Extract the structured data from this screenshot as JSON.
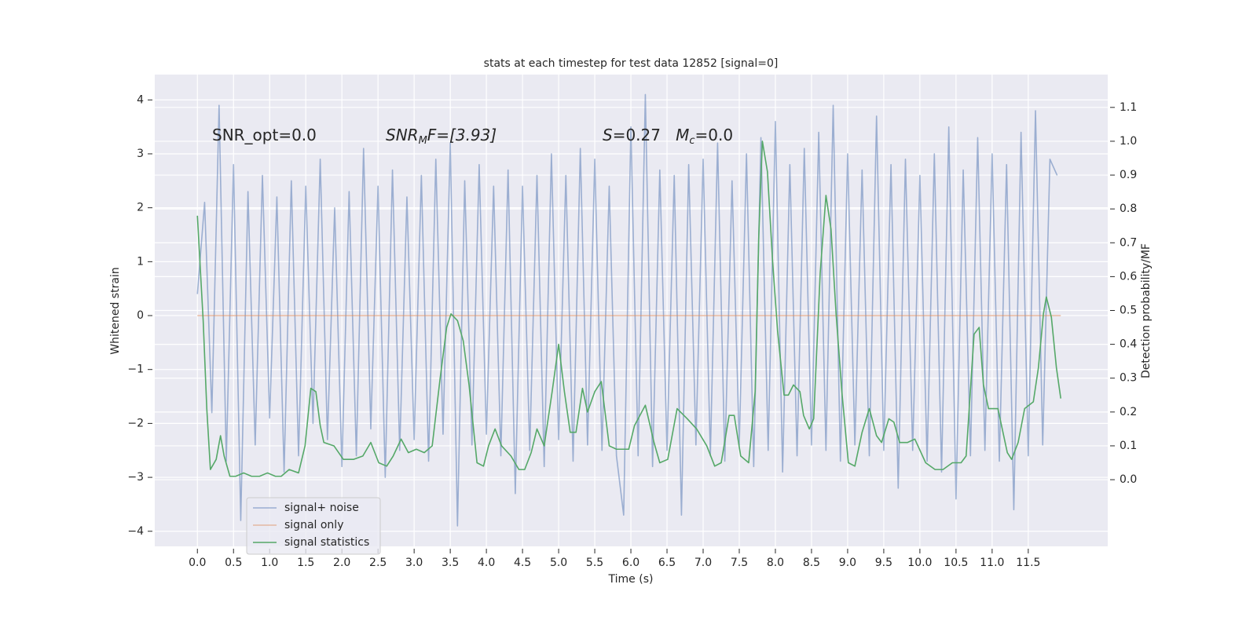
{
  "chart_data": {
    "type": "line",
    "title": "stats at each timestep for test data 12852 [signal=0]",
    "x_label": "Time (s)",
    "y_label": "Whitened strain",
    "y2_label": "Detection probability/MF",
    "annotations": [
      [
        "SNR_opt=0.0"
      ],
      [
        "SNR",
        "M",
        "F=[3.93]"
      ],
      [
        "S",
        "=0.27   ",
        "M",
        "c",
        "=0.0"
      ]
    ],
    "xlim": [
      -0.59,
      12.6
    ],
    "ylim": [
      -4.28,
      4.47
    ],
    "y2lim": [
      -0.197,
      1.197
    ],
    "xticks": [
      {
        "value": 0,
        "label": "0.0"
      },
      0.5,
      {
        "value": 1,
        "label": "1.0"
      },
      1.5,
      {
        "value": 2,
        "label": "2.0"
      },
      2.5,
      {
        "value": 3,
        "label": "3.0"
      },
      3.5,
      {
        "value": 4,
        "label": "4.0"
      },
      4.5,
      {
        "value": 5,
        "label": "5.0"
      },
      5.5,
      {
        "value": 6,
        "label": "6.0"
      },
      6.5,
      {
        "value": 7,
        "label": "7.0"
      },
      7.5,
      {
        "value": 8,
        "label": "8.0"
      },
      8.5,
      {
        "value": 9,
        "label": "9.0"
      },
      9.5,
      {
        "value": 10,
        "label": "10.0"
      },
      10.5,
      {
        "value": 11,
        "label": "11.0"
      },
      11.5
    ],
    "yticks": [
      {
        "value": -4,
        "label": "−4"
      },
      {
        "value": -3,
        "label": "−3"
      },
      {
        "value": -2,
        "label": "−2"
      },
      {
        "value": -1,
        "label": "−1"
      },
      0,
      1,
      2,
      3,
      4
    ],
    "y2ticks": [
      {
        "value": 0,
        "label": "0.0"
      },
      0.1,
      0.2,
      0.3,
      0.4,
      0.5,
      0.6,
      0.7,
      0.8,
      0.9,
      {
        "value": 1,
        "label": "1.0"
      },
      1.1
    ],
    "grid": true,
    "legend": "lower left",
    "series": [
      {
        "name": "signal+ noise",
        "color": "#4c72b0",
        "alpha": 0.5,
        "x": [
          0.0,
          0.1,
          0.2,
          0.3,
          0.4,
          0.5,
          0.6,
          0.7,
          0.8,
          0.9,
          1.0,
          1.1,
          1.2,
          1.3,
          1.4,
          1.5,
          1.6,
          1.7,
          1.8,
          1.9,
          2.0,
          2.1,
          2.2,
          2.3,
          2.4,
          2.5,
          2.6,
          2.7,
          2.8,
          2.9,
          3.0,
          3.1,
          3.2,
          3.3,
          3.4,
          3.5,
          3.6,
          3.7,
          3.8,
          3.9,
          4.0,
          4.1,
          4.2,
          4.3,
          4.4,
          4.5,
          4.6,
          4.7,
          4.8,
          4.9,
          5.0,
          5.1,
          5.2,
          5.3,
          5.4,
          5.5,
          5.6,
          5.7,
          5.8,
          5.9,
          6.0,
          6.1,
          6.2,
          6.3,
          6.4,
          6.5,
          6.6,
          6.7,
          6.8,
          6.9,
          7.0,
          7.1,
          7.2,
          7.3,
          7.4,
          7.5,
          7.6,
          7.7,
          7.8,
          7.9,
          8.0,
          8.1,
          8.2,
          8.3,
          8.4,
          8.5,
          8.6,
          8.7,
          8.8,
          8.9,
          9.0,
          9.1,
          9.2,
          9.3,
          9.4,
          9.5,
          9.6,
          9.7,
          9.8,
          9.9,
          10.0,
          10.1,
          10.2,
          10.3,
          10.4,
          10.5,
          10.6,
          10.7,
          10.8,
          10.9,
          11.0,
          11.1,
          11.2,
          11.3,
          11.4,
          11.5,
          11.6,
          11.7,
          11.8,
          11.9
        ],
        "values": [
          0.4,
          2.1,
          -1.8,
          3.9,
          -2.7,
          2.8,
          -3.8,
          2.3,
          -2.4,
          2.6,
          -1.9,
          2.2,
          -2.9,
          2.5,
          -2.6,
          2.4,
          -2.0,
          2.9,
          -2.3,
          2.0,
          -2.8,
          2.3,
          -2.6,
          3.1,
          -2.1,
          2.4,
          -3.0,
          2.7,
          -2.5,
          2.2,
          -2.3,
          2.6,
          -2.7,
          2.9,
          -2.2,
          3.2,
          -3.9,
          2.5,
          -2.4,
          2.8,
          -2.2,
          2.4,
          -2.6,
          2.7,
          -3.3,
          2.4,
          -2.5,
          2.6,
          -2.8,
          3.0,
          -2.3,
          2.6,
          -2.7,
          3.1,
          -2.4,
          2.9,
          -2.5,
          2.4,
          -2.6,
          -3.7,
          3.5,
          -2.6,
          4.1,
          -2.8,
          2.7,
          -2.5,
          2.6,
          -3.7,
          2.8,
          -2.4,
          2.9,
          -2.6,
          3.2,
          -2.7,
          2.5,
          -2.4,
          3.0,
          -2.8,
          3.3,
          -2.5,
          3.6,
          -2.9,
          2.8,
          -2.6,
          3.1,
          -2.4,
          3.4,
          -2.5,
          3.9,
          -2.7,
          3.0,
          -2.4,
          2.7,
          -2.6,
          3.7,
          -2.5,
          2.8,
          -3.2,
          2.9,
          -2.5,
          2.6,
          -2.7,
          3.0,
          -2.9,
          3.5,
          -3.4,
          2.7,
          -2.6,
          3.3,
          -2.5,
          3.0,
          -2.7,
          2.8,
          -3.6,
          3.4,
          -2.6,
          3.8,
          -2.4,
          2.9,
          2.6
        ]
      },
      {
        "name": "signal only",
        "color": "#dd8452",
        "alpha": 0.5,
        "x": [
          0.0,
          11.95
        ],
        "values": [
          0,
          0
        ]
      },
      {
        "name": "signal statistics",
        "color": "#55a868",
        "axis": "y2",
        "x": [
          0.0,
          0.08,
          0.13,
          0.18,
          0.26,
          0.32,
          0.37,
          0.45,
          0.53,
          0.64,
          0.75,
          0.86,
          0.97,
          1.08,
          1.16,
          1.27,
          1.4,
          1.49,
          1.57,
          1.64,
          1.7,
          1.75,
          1.89,
          2.02,
          2.16,
          2.29,
          2.4,
          2.51,
          2.62,
          2.71,
          2.82,
          2.92,
          3.03,
          3.14,
          3.25,
          3.36,
          3.45,
          3.51,
          3.6,
          3.68,
          3.76,
          3.87,
          3.96,
          4.03,
          4.12,
          4.21,
          4.34,
          4.45,
          4.53,
          4.62,
          4.7,
          4.8,
          4.91,
          5.0,
          5.08,
          5.16,
          5.24,
          5.33,
          5.4,
          5.5,
          5.59,
          5.7,
          5.8,
          5.97,
          6.05,
          6.2,
          6.32,
          6.4,
          6.51,
          6.64,
          6.78,
          6.91,
          7.05,
          7.16,
          7.25,
          7.36,
          7.43,
          7.52,
          7.63,
          7.72,
          7.77,
          7.82,
          7.89,
          7.96,
          8.03,
          8.12,
          8.18,
          8.25,
          8.34,
          8.39,
          8.47,
          8.53,
          8.62,
          8.7,
          8.77,
          8.84,
          8.92,
          9.01,
          9.1,
          9.2,
          9.3,
          9.4,
          9.47,
          9.57,
          9.64,
          9.72,
          9.83,
          9.93,
          10.08,
          10.21,
          10.32,
          10.45,
          10.57,
          10.64,
          10.75,
          10.82,
          10.88,
          10.95,
          11.08,
          11.14,
          11.21,
          11.27,
          11.36,
          11.45,
          11.57,
          11.64,
          11.71,
          11.75,
          11.82,
          11.89,
          11.95
        ],
        "values": [
          0.78,
          0.47,
          0.21,
          0.03,
          0.06,
          0.13,
          0.07,
          0.01,
          0.01,
          0.02,
          0.01,
          0.01,
          0.02,
          0.01,
          0.01,
          0.03,
          0.02,
          0.1,
          0.27,
          0.26,
          0.16,
          0.11,
          0.1,
          0.06,
          0.06,
          0.07,
          0.11,
          0.05,
          0.04,
          0.07,
          0.12,
          0.08,
          0.09,
          0.08,
          0.1,
          0.3,
          0.45,
          0.49,
          0.47,
          0.41,
          0.28,
          0.05,
          0.04,
          0.1,
          0.15,
          0.1,
          0.07,
          0.03,
          0.03,
          0.08,
          0.15,
          0.1,
          0.26,
          0.4,
          0.26,
          0.14,
          0.14,
          0.27,
          0.2,
          0.26,
          0.29,
          0.1,
          0.09,
          0.09,
          0.16,
          0.22,
          0.11,
          0.05,
          0.06,
          0.21,
          0.18,
          0.15,
          0.1,
          0.04,
          0.05,
          0.19,
          0.19,
          0.07,
          0.05,
          0.26,
          0.72,
          1.0,
          0.91,
          0.65,
          0.44,
          0.25,
          0.25,
          0.28,
          0.26,
          0.19,
          0.15,
          0.18,
          0.61,
          0.84,
          0.74,
          0.49,
          0.26,
          0.05,
          0.04,
          0.14,
          0.21,
          0.13,
          0.11,
          0.18,
          0.17,
          0.11,
          0.11,
          0.12,
          0.05,
          0.03,
          0.03,
          0.05,
          0.05,
          0.07,
          0.43,
          0.45,
          0.28,
          0.21,
          0.21,
          0.15,
          0.08,
          0.06,
          0.11,
          0.21,
          0.23,
          0.33,
          0.49,
          0.54,
          0.48,
          0.33,
          0.24
        ]
      }
    ]
  }
}
